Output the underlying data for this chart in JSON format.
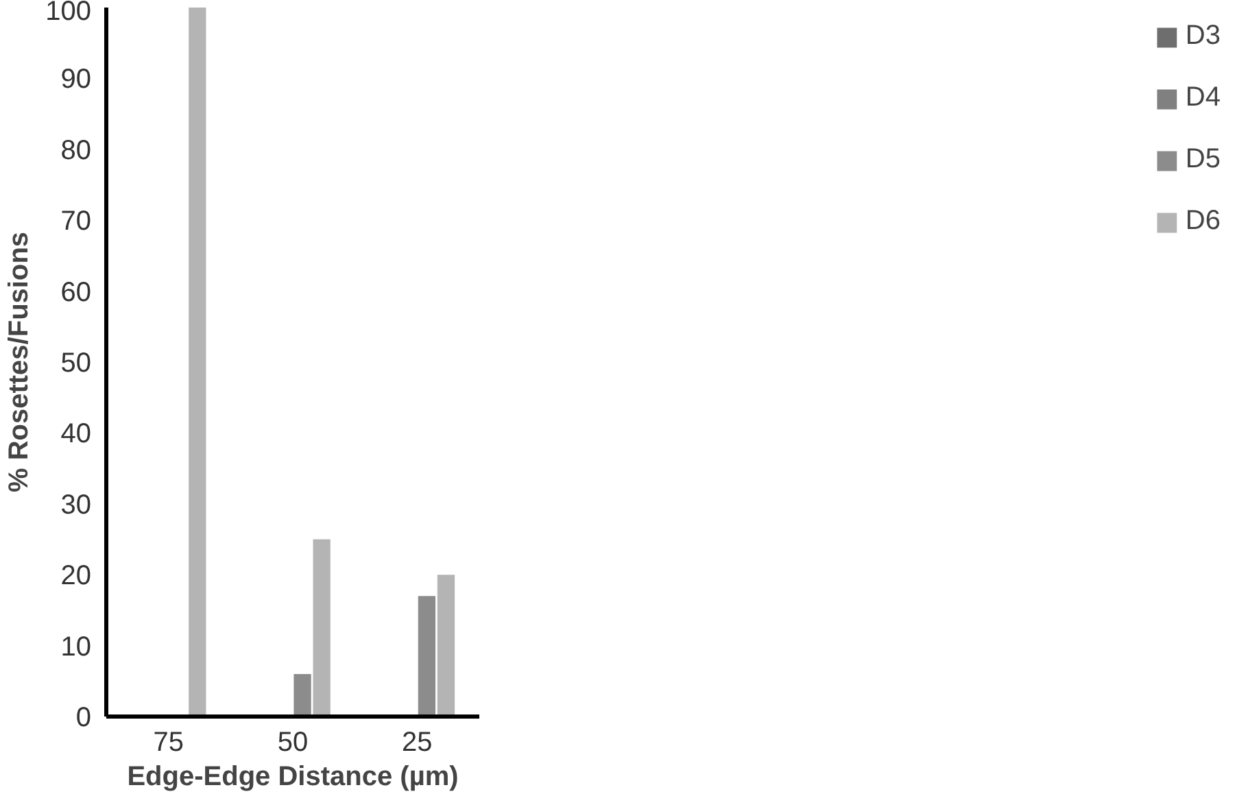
{
  "chart_data": {
    "type": "bar",
    "xlabel": "Edge-Edge Distance (µm)",
    "ylabel": "% Rosettes/Fusions",
    "categories": [
      "75",
      "50",
      "25"
    ],
    "series": [
      {
        "name": "D3",
        "color": "#6e6e6e",
        "values": [
          null,
          null,
          null
        ]
      },
      {
        "name": "D4",
        "color": "#808080",
        "values": [
          null,
          null,
          null
        ]
      },
      {
        "name": "D5",
        "color": "#8c8c8c",
        "values": [
          null,
          6,
          17
        ]
      },
      {
        "name": "D6",
        "color": "#b4b4b4",
        "values": [
          100,
          25,
          20
        ]
      }
    ],
    "ylim": [
      0,
      100
    ],
    "yticks": [
      0,
      10,
      20,
      30,
      40,
      50,
      60,
      70,
      80,
      90,
      100
    ],
    "grid": false,
    "legend": "right"
  }
}
